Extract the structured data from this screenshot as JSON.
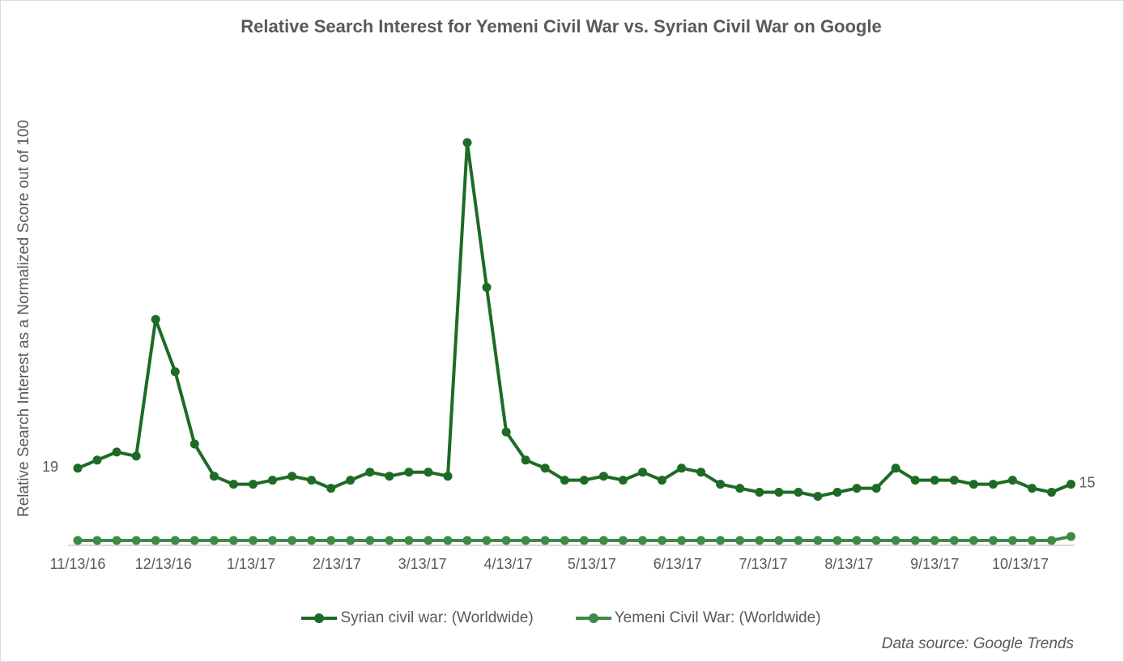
{
  "chart_data": {
    "type": "line",
    "title": "Relative Search Interest for Yemeni Civil War vs. Syrian Civil War on Google",
    "ylabel": "Relative Search Interest as a Normalized Score out of 100",
    "xlabel": "",
    "x_tick_labels": [
      "11/13/16",
      "12/13/16",
      "1/13/17",
      "2/13/17",
      "3/13/17",
      "4/13/17",
      "5/13/17",
      "6/13/17",
      "7/13/17",
      "8/13/17",
      "9/13/17",
      "10/13/17"
    ],
    "x_tick_indices": [
      0,
      4.4,
      8.9,
      13.3,
      17.7,
      22.1,
      26.4,
      30.8,
      35.2,
      39.6,
      44.0,
      48.4
    ],
    "ylim": [
      0,
      100
    ],
    "grid": false,
    "legend_position": "bottom",
    "data_labels": [
      {
        "series": 0,
        "index": 0,
        "text": "19"
      },
      {
        "series": 0,
        "index": 51,
        "text": "15"
      }
    ],
    "series": [
      {
        "name": "Syrian civil war: (Worldwide)",
        "color": "#1e6b26",
        "values": [
          19,
          21,
          23,
          22,
          56,
          43,
          25,
          17,
          15,
          15,
          16,
          17,
          16,
          14,
          16,
          18,
          17,
          18,
          18,
          17,
          100,
          64,
          28,
          21,
          19,
          16,
          16,
          17,
          16,
          18,
          16,
          19,
          18,
          15,
          14,
          13,
          13,
          13,
          12,
          13,
          14,
          14,
          19,
          16,
          16,
          16,
          15,
          15,
          16,
          14,
          13,
          15
        ]
      },
      {
        "name": "Yemeni Civil War: (Worldwide)",
        "color": "#3d8b47",
        "values": [
          1,
          1,
          1,
          1,
          1,
          1,
          1,
          1,
          1,
          1,
          1,
          1,
          1,
          1,
          1,
          1,
          1,
          1,
          1,
          1,
          1,
          1,
          1,
          1,
          1,
          1,
          1,
          1,
          1,
          1,
          1,
          1,
          1,
          1,
          1,
          1,
          1,
          1,
          1,
          1,
          1,
          1,
          1,
          1,
          1,
          1,
          1,
          1,
          1,
          1,
          1,
          2
        ]
      }
    ]
  },
  "source_note": "Data source: Google Trends",
  "colors": {
    "axis": "#d9d9d9",
    "text": "#595959"
  }
}
